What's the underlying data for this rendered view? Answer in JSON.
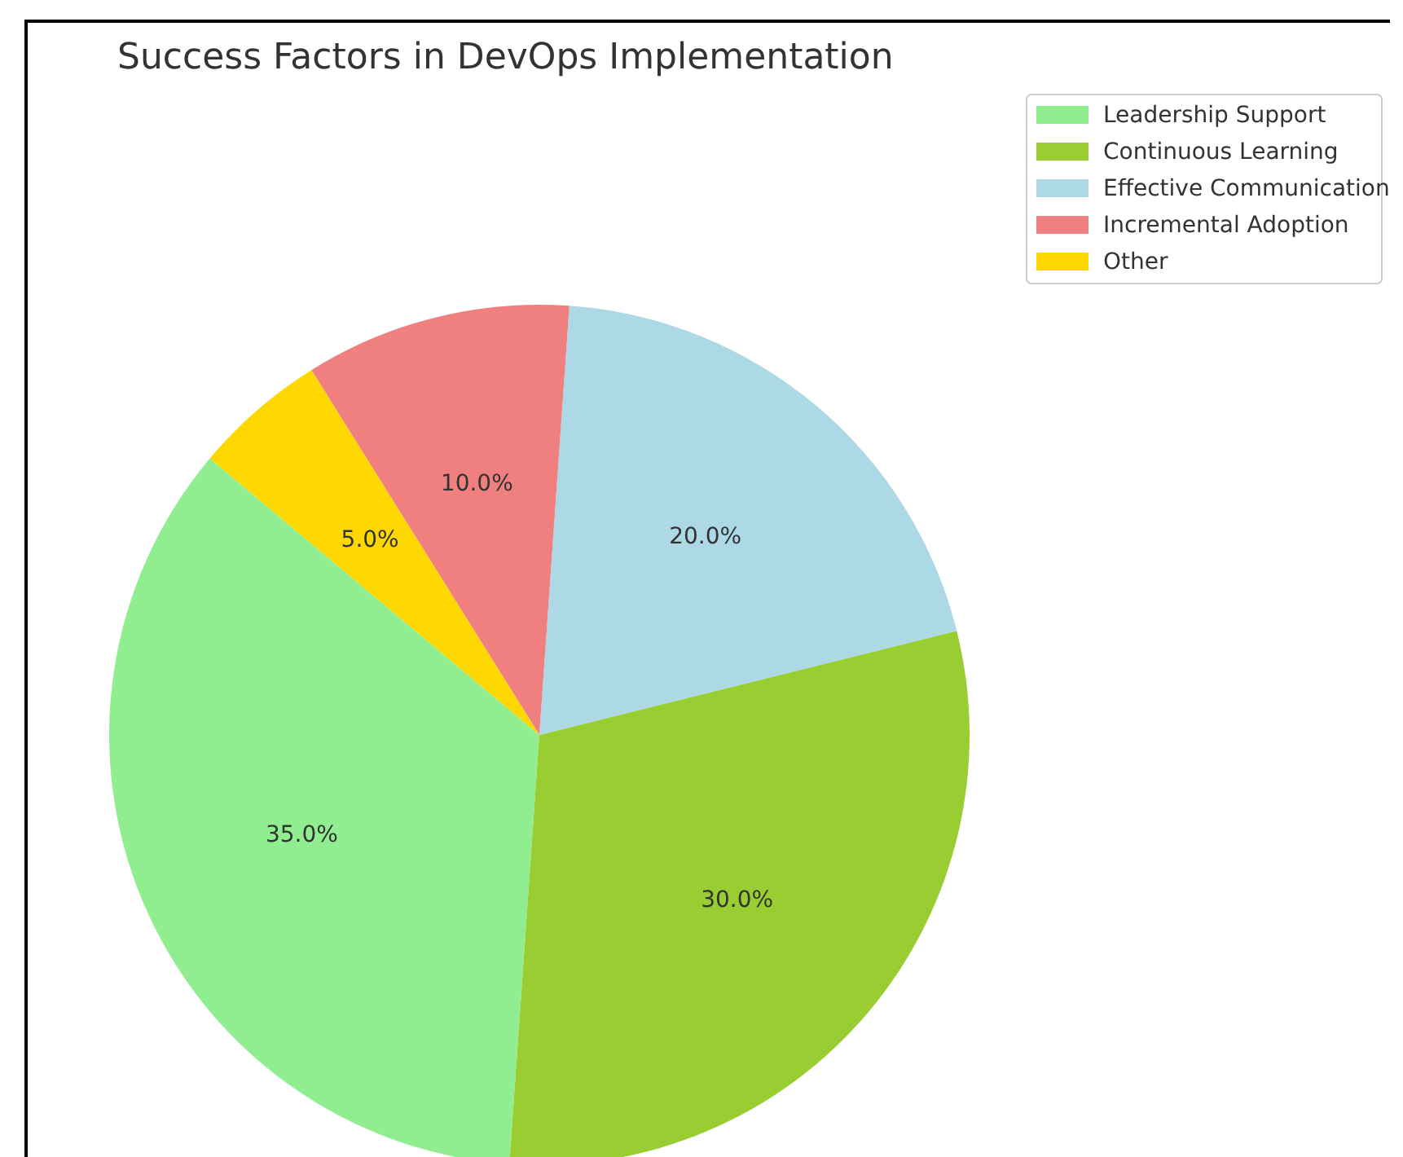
{
  "chart_data": {
    "type": "pie",
    "title": "Success Factors in DevOps Implementation",
    "categories": [
      "Leadership Support",
      "Continuous Learning",
      "Effective Communication",
      "Incremental Adoption",
      "Other"
    ],
    "values": [
      35,
      30,
      20,
      10,
      5
    ],
    "colors": [
      "#90ee90",
      "#9acd32",
      "#add8e6",
      "#f08080",
      "#ffd700"
    ],
    "value_labels": [
      "35.0%",
      "30.0%",
      "20.0%",
      "10.0%",
      "5.0%"
    ],
    "legend": "top right"
  }
}
